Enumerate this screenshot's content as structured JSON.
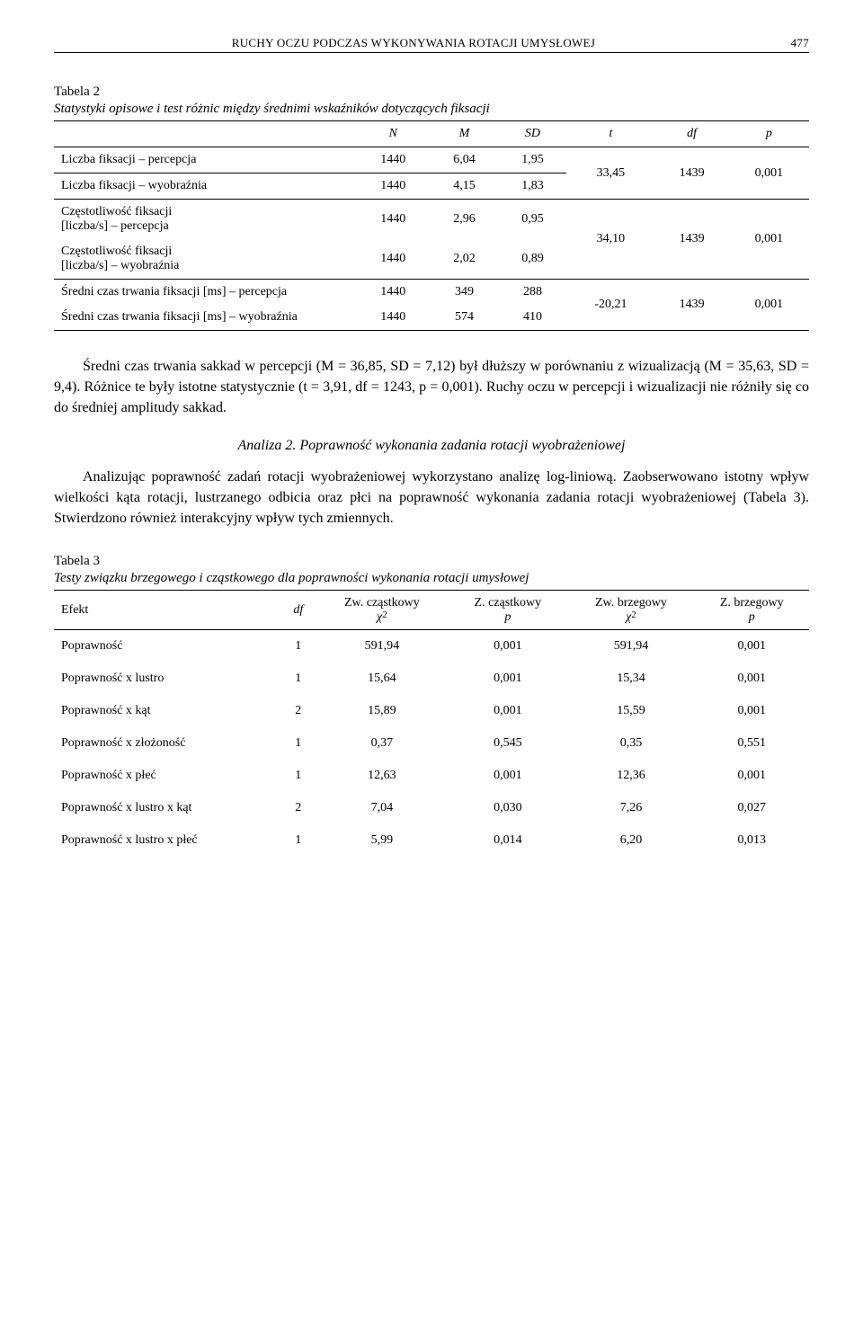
{
  "header": {
    "running_title": "RUCHY OCZU PODCZAS WYKONYWANIA ROTACJI UMYSŁOWEJ",
    "page_number": "477"
  },
  "table2": {
    "caption": "Tabela 2",
    "subtitle": "Statystyki opisowe i test różnic między średnimi wskaźników dotyczących fiksacji",
    "headers": {
      "N": "N",
      "M": "M",
      "SD": "SD",
      "t": "t",
      "df": "df",
      "p": "p"
    },
    "rows": [
      {
        "label": "Liczba fiksacji – percepcja",
        "N": "1440",
        "M": "6,04",
        "SD": "1,95"
      },
      {
        "label": "Liczba fiksacji – wyobraźnia",
        "N": "1440",
        "M": "4,15",
        "SD": "1,83"
      },
      {
        "label": "Częstotliwość fiksacji\n[liczba/s] – percepcja",
        "N": "1440",
        "M": "2,96",
        "SD": "0,95"
      },
      {
        "label": "Częstotliwość fiksacji\n[liczba/s] – wyobraźnia",
        "N": "1440",
        "M": "2,02",
        "SD": "0,89"
      },
      {
        "label": "Średni czas trwania fiksacji [ms] – percepcja",
        "N": "1440",
        "M": "349",
        "SD": "288"
      },
      {
        "label": "Średni czas trwania fiksacji [ms] – wyobraźnia",
        "N": "1440",
        "M": "574",
        "SD": "410"
      }
    ],
    "groups": [
      {
        "t": "33,45",
        "df": "1439",
        "p": "0,001"
      },
      {
        "t": "34,10",
        "df": "1439",
        "p": "0,001"
      },
      {
        "t": "-20,21",
        "df": "1439",
        "p": "0,001"
      }
    ]
  },
  "para1": "Średni czas trwania sakkad w percepcji (M = 36,85, SD  = 7,12) był dłuższy w porównaniu z wizualizacją (M = 35,63, SD = 9,4). Różnice te były istotne statystycznie (t = 3,91, df = 1243, p = 0,001). Ruchy oczu w percepcji i wizualizacji nie różniły się co do średniej amplitudy sakkad.",
  "analiza2_head": "Analiza 2. Poprawność wykonania zadania rotacji wyobrażeniowej",
  "para2": "Analizując poprawność zadań rotacji wyobrażeniowej wykorzystano analizę log-liniową. Zaobserwowano istotny wpływ wielkości kąta rotacji, lustrzanego odbicia oraz płci na poprawność wykonania zadania rotacji wyobrażeniowej (Tabela 3). Stwierdzono również interakcyjny wpływ tych zmiennych.",
  "table3": {
    "caption": "Tabela 3",
    "subtitle": "Testy związku brzegowego i cząstkowego dla poprawności wykonania rotacji umysłowej",
    "headers": {
      "effect": "Efekt",
      "df": "df",
      "zw_cz_chi_top": "Zw. cząstkowy",
      "z_cz_p_top": "Z. cząstkowy",
      "zw_brz_chi_top": "Zw. brzegowy",
      "z_brz_p_top": "Z. brzegowy",
      "chi": "χ",
      "p": "p"
    },
    "rows": [
      {
        "effect": "Poprawność",
        "df": "1",
        "zw_cz_chi": "591,94",
        "z_cz_p": "0,001",
        "zw_brz_chi": "591,94",
        "z_brz_p": "0,001"
      },
      {
        "effect": "Poprawność x lustro",
        "df": "1",
        "zw_cz_chi": "15,64",
        "z_cz_p": "0,001",
        "zw_brz_chi": "15,34",
        "z_brz_p": "0,001"
      },
      {
        "effect": "Poprawność x kąt",
        "df": "2",
        "zw_cz_chi": "15,89",
        "z_cz_p": "0,001",
        "zw_brz_chi": "15,59",
        "z_brz_p": "0,001"
      },
      {
        "effect": "Poprawność x złożoność",
        "df": "1",
        "zw_cz_chi": "0,37",
        "z_cz_p": "0,545",
        "zw_brz_chi": "0,35",
        "z_brz_p": "0,551"
      },
      {
        "effect": "Poprawność x płeć",
        "df": "1",
        "zw_cz_chi": "12,63",
        "z_cz_p": "0,001",
        "zw_brz_chi": "12,36",
        "z_brz_p": "0,001"
      },
      {
        "effect": "Poprawność x lustro x kąt",
        "df": "2",
        "zw_cz_chi": "7,04",
        "z_cz_p": "0,030",
        "zw_brz_chi": "7,26",
        "z_brz_p": "0,027"
      },
      {
        "effect": "Poprawność x lustro x płeć",
        "df": "1",
        "zw_cz_chi": "5,99",
        "z_cz_p": "0,014",
        "zw_brz_chi": "6,20",
        "z_brz_p": "0,013"
      }
    ]
  }
}
